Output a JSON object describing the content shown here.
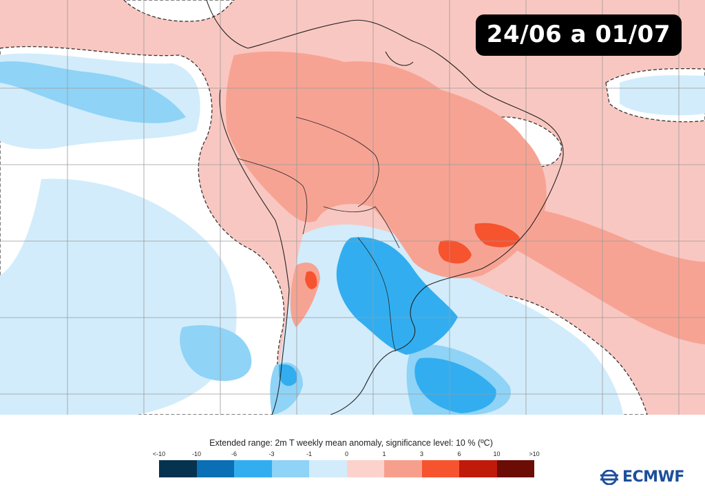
{
  "map": {
    "date_range": "24/06 a 01/07"
  },
  "legend": {
    "title": "Extended range: 2m T weekly mean anomaly, significance level: 10 % (ºC)",
    "ticks": [
      "<-10",
      "-10",
      "-6",
      "-3",
      "-1",
      "0",
      "1",
      "3",
      "6",
      "10",
      ">10"
    ],
    "colors": [
      "#05324f",
      "#0a6fb5",
      "#32aef0",
      "#8fd3f7",
      "#d2ecfb",
      "#fcd2cd",
      "#f79f8d",
      "#f6532f",
      "#c01a0a",
      "#6b0d05"
    ]
  },
  "branding": {
    "logo_text": "ECMWF",
    "logo_icon": "ecmwf-logo-icon"
  }
}
